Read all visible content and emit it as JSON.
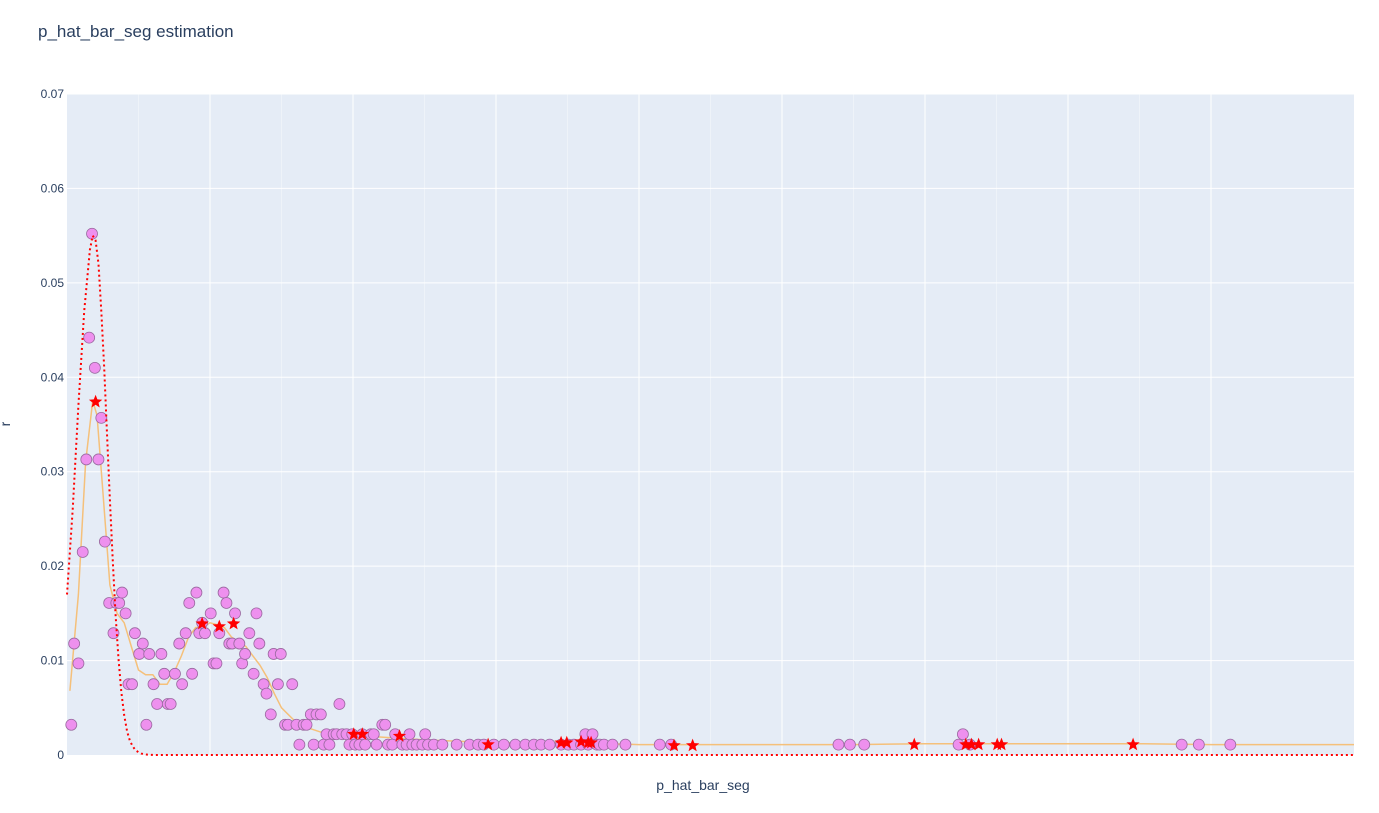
{
  "chart_data": {
    "type": "scatter",
    "title": "p_hat_bar_seg estimation",
    "xlabel": "p_hat_bar_seg",
    "ylabel": "r",
    "xlim": [
      0,
      0.9
    ],
    "ylim": [
      0,
      0.07
    ],
    "y_ticks": [
      "0",
      "0.01",
      "0.02",
      "0.03",
      "0.04",
      "0.05",
      "0.06",
      "0.07"
    ],
    "grid": true,
    "colors": {
      "plot_bg": "#e5ecf6",
      "grid": "#ffffff",
      "markers": "#ee90ee",
      "marker_edge": "#9a6aa0",
      "smooth_line": "#f5c07a",
      "fit_curve": "#ff0000",
      "stars": "#ff0000"
    },
    "series": [
      {
        "name": "",
        "kind": "markers",
        "x": [
          0.003,
          0.005,
          0.008,
          0.011,
          0.0135,
          0.0155,
          0.0175,
          0.0195,
          0.022,
          0.024,
          0.0265,
          0.0295,
          0.0325,
          0.0345,
          0.0365,
          0.0385,
          0.041,
          0.043,
          0.0455,
          0.0475,
          0.0505,
          0.053,
          0.0555,
          0.0575,
          0.0605,
          0.063,
          0.066,
          0.068,
          0.0705,
          0.0725,
          0.0755,
          0.0785,
          0.0805,
          0.083,
          0.0855,
          0.0875,
          0.0905,
          0.0925,
          0.0945,
          0.0965,
          0.1005,
          0.1025,
          0.1045,
          0.1065,
          0.1095,
          0.1115,
          0.1135,
          0.1155,
          0.1175,
          0.1205,
          0.1225,
          0.1245,
          0.1275,
          0.1305,
          0.1325,
          0.1345,
          0.1375,
          0.1395,
          0.1425,
          0.1445,
          0.1475,
          0.1495,
          0.1525,
          0.1545,
          0.1575,
          0.1605,
          0.1625,
          0.1655,
          0.1675,
          0.1705,
          0.1725,
          0.1745,
          0.1775,
          0.1795,
          0.1815,
          0.1835,
          0.1865,
          0.1885,
          0.1905,
          0.1925,
          0.1955,
          0.1975,
          0.1995,
          0.2015,
          0.2045,
          0.2065,
          0.2085,
          0.2125,
          0.2145,
          0.2165,
          0.2205,
          0.2225,
          0.2245,
          0.2275,
          0.2295,
          0.2345,
          0.2375,
          0.2395,
          0.2415,
          0.2445,
          0.2485,
          0.2505,
          0.2525,
          0.2565,
          0.2625,
          0.2725,
          0.2815,
          0.2875,
          0.2915,
          0.2985,
          0.3055,
          0.3135,
          0.3205,
          0.3265,
          0.3315,
          0.3375,
          0.3455,
          0.3505,
          0.3545,
          0.3595,
          0.3625,
          0.3645,
          0.3675,
          0.3705,
          0.3725,
          0.3755,
          0.3815,
          0.3905,
          0.4145,
          0.4225,
          0.5395,
          0.5475,
          0.5575,
          0.6235,
          0.6265,
          0.6315,
          0.7795,
          0.7915,
          0.8135
        ],
        "y": [
          0.0032,
          0.0118,
          0.0097,
          0.0215,
          0.0313,
          0.0442,
          0.0552,
          0.041,
          0.0313,
          0.0357,
          0.0226,
          0.0161,
          0.0129,
          0.0161,
          0.0161,
          0.0172,
          0.015,
          0.0075,
          0.0075,
          0.0129,
          0.0107,
          0.0118,
          0.0032,
          0.0107,
          0.0075,
          0.0054,
          0.0107,
          0.0086,
          0.0054,
          0.0054,
          0.0086,
          0.0118,
          0.0075,
          0.0129,
          0.0161,
          0.0086,
          0.0172,
          0.0129,
          0.014,
          0.0129,
          0.015,
          0.0097,
          0.0097,
          0.0129,
          0.0172,
          0.0161,
          0.0118,
          0.0118,
          0.015,
          0.0118,
          0.0097,
          0.0107,
          0.0129,
          0.0086,
          0.015,
          0.0118,
          0.0075,
          0.0065,
          0.0043,
          0.0107,
          0.0075,
          0.0107,
          0.0032,
          0.0032,
          0.0075,
          0.0032,
          0.0011,
          0.0032,
          0.0032,
          0.0043,
          0.0011,
          0.0043,
          0.0043,
          0.0011,
          0.0022,
          0.0011,
          0.0022,
          0.0022,
          0.0054,
          0.0022,
          0.0022,
          0.0011,
          0.0022,
          0.0011,
          0.0011,
          0.0022,
          0.0011,
          0.0022,
          0.0022,
          0.0011,
          0.0032,
          0.0032,
          0.0011,
          0.0011,
          0.0022,
          0.0011,
          0.0011,
          0.0022,
          0.0011,
          0.0011,
          0.0011,
          0.0022,
          0.0011,
          0.0011,
          0.0011,
          0.0011,
          0.0011,
          0.0011,
          0.0011,
          0.0011,
          0.0011,
          0.0011,
          0.0011,
          0.0011,
          0.0011,
          0.0011,
          0.0011,
          0.0011,
          0.0011,
          0.0011,
          0.0022,
          0.0011,
          0.0022,
          0.0011,
          0.0011,
          0.0011,
          0.0011,
          0.0011,
          0.0011,
          0.0011,
          0.0011,
          0.0011,
          0.0011,
          0.0011,
          0.0022,
          0.0011,
          0.0011,
          0.0011,
          0.0011
        ]
      },
      {
        "name": "",
        "kind": "smooth-line",
        "x": [
          0.002,
          0.008,
          0.013,
          0.018,
          0.021,
          0.025,
          0.03,
          0.035,
          0.04,
          0.045,
          0.05,
          0.055,
          0.06,
          0.065,
          0.07,
          0.075,
          0.08,
          0.085,
          0.09,
          0.095,
          0.1,
          0.105,
          0.11,
          0.115,
          0.12,
          0.125,
          0.13,
          0.135,
          0.14,
          0.145,
          0.15,
          0.16,
          0.17,
          0.18,
          0.19,
          0.2,
          0.22,
          0.25,
          0.3,
          0.35,
          0.4,
          0.45,
          0.5,
          0.55,
          0.6,
          0.65,
          0.7,
          0.75,
          0.8,
          0.85,
          0.9
        ],
        "y": [
          0.0068,
          0.017,
          0.031,
          0.0375,
          0.036,
          0.028,
          0.018,
          0.015,
          0.014,
          0.0115,
          0.009,
          0.0085,
          0.0085,
          0.0075,
          0.0075,
          0.0088,
          0.0105,
          0.0125,
          0.0135,
          0.0135,
          0.014,
          0.0138,
          0.0135,
          0.0125,
          0.012,
          0.0115,
          0.0105,
          0.0095,
          0.0082,
          0.0065,
          0.005,
          0.0035,
          0.0028,
          0.0023,
          0.0022,
          0.0021,
          0.0019,
          0.0016,
          0.0013,
          0.0013,
          0.0011,
          0.0011,
          0.0011,
          0.0011,
          0.0012,
          0.0012,
          0.0012,
          0.0012,
          0.0011,
          0.0011,
          0.0011
        ]
      },
      {
        "name": "",
        "kind": "fit-curve",
        "x": [
          0.0,
          0.004,
          0.008,
          0.012,
          0.016,
          0.018,
          0.02,
          0.022,
          0.024,
          0.026,
          0.028,
          0.03,
          0.032,
          0.034,
          0.036,
          0.038,
          0.04,
          0.042,
          0.044,
          0.046,
          0.048,
          0.05,
          0.052,
          0.054,
          0.056,
          0.058,
          0.06,
          0.065,
          0.07,
          0.08,
          0.1,
          0.2,
          0.4,
          0.6,
          0.9
        ],
        "y": [
          0.017,
          0.026,
          0.037,
          0.047,
          0.0535,
          0.055,
          0.0545,
          0.052,
          0.047,
          0.041,
          0.034,
          0.027,
          0.0205,
          0.0148,
          0.0102,
          0.0067,
          0.0042,
          0.0025,
          0.0015,
          0.0009,
          0.0005,
          0.0003,
          0.00015,
          8e-05,
          4e-05,
          2e-05,
          1e-05,
          0.0,
          0.0,
          0.0,
          0.0,
          0.0,
          0.0,
          0.0,
          0.0
        ]
      },
      {
        "name": "",
        "kind": "stars",
        "x": [
          0.02,
          0.0945,
          0.1065,
          0.1165,
          0.2005,
          0.2065,
          0.2325,
          0.2945,
          0.3455,
          0.3495,
          0.3595,
          0.3645,
          0.3665,
          0.4245,
          0.4375,
          0.5925,
          0.6285,
          0.6325,
          0.6375,
          0.6505,
          0.6535,
          0.7455
        ],
        "y": [
          0.0374,
          0.0139,
          0.0136,
          0.0139,
          0.0022,
          0.0022,
          0.002,
          0.0011,
          0.0013,
          0.0013,
          0.0014,
          0.0013,
          0.0013,
          0.001,
          0.001,
          0.0011,
          0.0011,
          0.0011,
          0.0011,
          0.0011,
          0.0011,
          0.0011
        ]
      }
    ]
  }
}
